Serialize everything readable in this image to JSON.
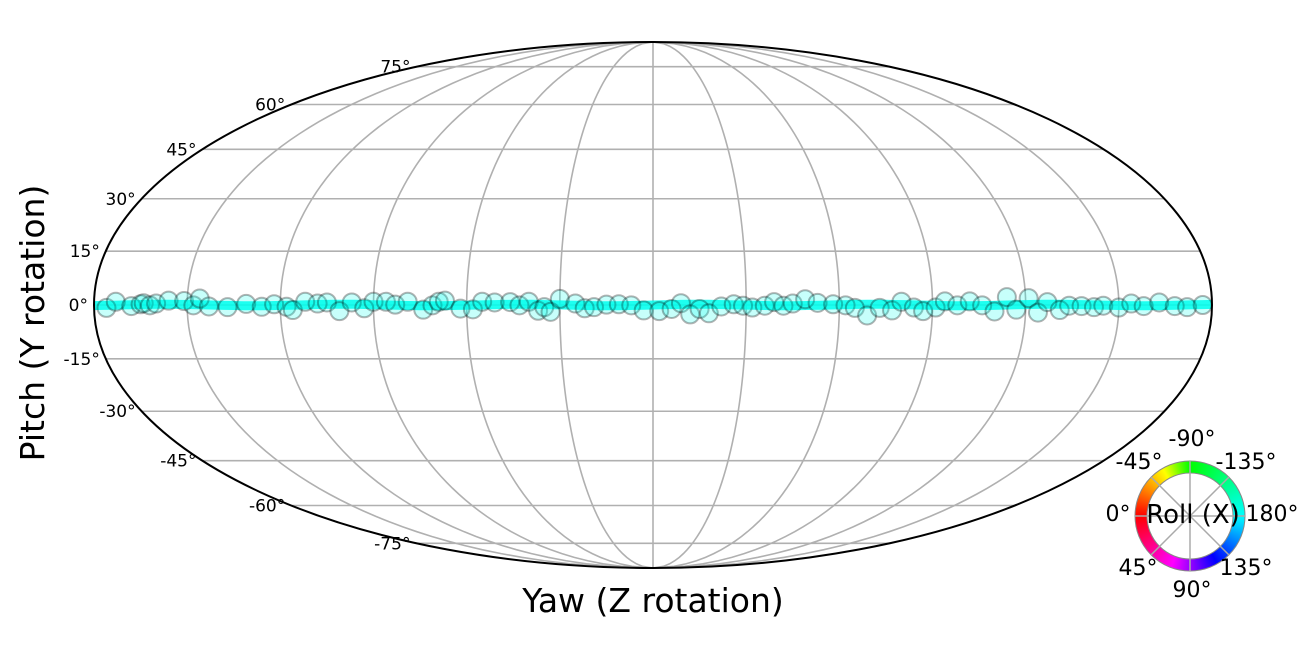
{
  "chart_data": {
    "type": "scatter",
    "projection": "mollweide",
    "xlabel": "Yaw (Z rotation)",
    "ylabel": "Pitch (Y rotation)",
    "xlim": [
      -180,
      180
    ],
    "ylim": [
      -90,
      90
    ],
    "grid": true,
    "lat_ticks": [
      {
        "value": 75,
        "label": "75°"
      },
      {
        "value": 60,
        "label": "60°"
      },
      {
        "value": 45,
        "label": "45°"
      },
      {
        "value": 30,
        "label": "30°"
      },
      {
        "value": 15,
        "label": "15°"
      },
      {
        "value": 0,
        "label": "0°"
      },
      {
        "value": -15,
        "label": "-15°"
      },
      {
        "value": -30,
        "label": "-30°"
      },
      {
        "value": -45,
        "label": "-45°"
      },
      {
        "value": -60,
        "label": "-60°"
      },
      {
        "value": -75,
        "label": "-75°"
      }
    ],
    "lon_gridlines": [
      -150,
      -120,
      -90,
      -60,
      -30,
      0,
      30,
      60,
      90,
      120,
      150
    ],
    "marker_color": "#00ffee",
    "points": {
      "yaw": [
        -176,
        -173,
        -168,
        -165,
        -164,
        -162,
        -160,
        -156,
        -151,
        -148,
        -146,
        -143,
        -137,
        -131,
        -126,
        -122,
        -118,
        -116,
        -112,
        -108,
        -105,
        -101,
        -97,
        -93,
        -90,
        -86,
        -83,
        -79,
        -74,
        -71,
        -69,
        -67,
        -62,
        -58,
        -55,
        -51,
        -46,
        -43,
        -40,
        -37,
        -35,
        -33,
        -30,
        -25,
        -22,
        -19,
        -15,
        -11,
        -7,
        -3,
        2,
        6,
        9,
        12,
        15,
        18,
        22,
        26,
        29,
        32,
        36,
        39,
        42,
        45,
        49,
        53,
        58,
        62,
        65,
        69,
        73,
        77,
        80,
        84,
        87,
        91,
        94,
        98,
        102,
        106,
        110,
        114,
        117,
        121,
        124,
        127,
        131,
        134,
        138,
        142,
        145,
        150,
        154,
        158,
        163,
        168,
        172,
        177
      ],
      "pitch": [
        -0.8,
        0.9,
        -0.3,
        0.2,
        0.5,
        -0.1,
        0.4,
        1.2,
        1.1,
        -0.1,
        1.8,
        -0.4,
        -0.6,
        0.3,
        -0.5,
        0.2,
        -0.5,
        -1.4,
        0.9,
        0.4,
        0.7,
        -1.7,
        0.7,
        -0.9,
        0.9,
        0.9,
        0.1,
        0.9,
        -1.3,
        -0.1,
        0.9,
        1.2,
        -1.0,
        -1.2,
        0.9,
        0.7,
        0.8,
        -0.1,
        0.9,
        -1.6,
        -0.6,
        -1.9,
        1.7,
        0.4,
        -0.9,
        -0.6,
        0.1,
        0.2,
        -0.1,
        -1.5,
        -1.7,
        -1.1,
        0.5,
        -2.6,
        -1.1,
        -2.3,
        -0.4,
        0.2,
        -0.2,
        -0.7,
        -0.2,
        0.8,
        -0.2,
        0.4,
        1.6,
        0.6,
        0.2,
        -0.1,
        -0.8,
        -2.9,
        -0.8,
        -1.5,
        0.9,
        -0.7,
        -1.7,
        -0.7,
        1.0,
        -0.1,
        1.0,
        -0.1,
        -1.8,
        2.2,
        -1.3,
        1.9,
        -2.1,
        0.8,
        -1.4,
        -0.2,
        -0.3,
        -0.6,
        -0.2,
        -0.7,
        0.4,
        -0.3,
        0.7,
        -0.3,
        -0.6,
        0.0
      ]
    },
    "colorwheel": {
      "title": "Roll (X)",
      "labels": {
        "top": "-90°",
        "top_left": "-45°",
        "top_right": "-135°",
        "left": "0°",
        "right": "180°",
        "bottom_left": "45°",
        "bottom_right": "135°",
        "bottom": "90°"
      }
    }
  }
}
